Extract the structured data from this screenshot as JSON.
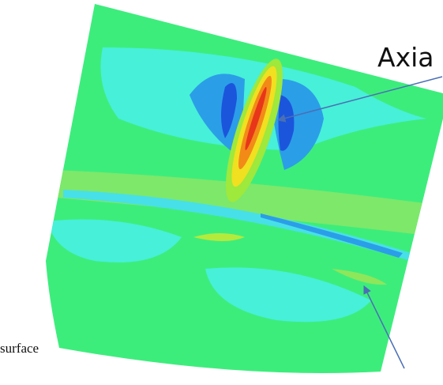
{
  "annotations": {
    "axial": "Axia",
    "surface": "surface"
  }
}
